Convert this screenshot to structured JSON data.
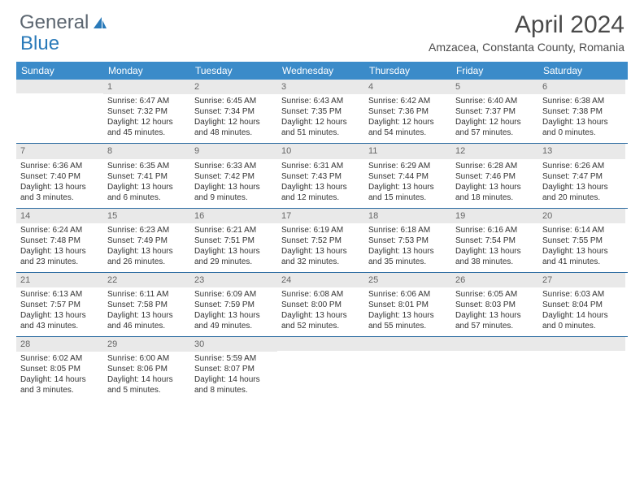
{
  "logo": {
    "text1": "General",
    "text2": "Blue"
  },
  "title": "April 2024",
  "location": "Amzacea, Constanta County, Romania",
  "colors": {
    "header_bg": "#3b8bc9",
    "header_text": "#ffffff",
    "daynum_bg": "#e9e9e9",
    "daynum_text": "#666666",
    "body_text": "#333333",
    "week_border": "#2a6aa0",
    "title_text": "#4a4a4a",
    "logo_gray": "#5c6670",
    "logo_blue": "#2a7ab9"
  },
  "day_labels": [
    "Sunday",
    "Monday",
    "Tuesday",
    "Wednesday",
    "Thursday",
    "Friday",
    "Saturday"
  ],
  "weeks": [
    [
      {
        "n": "",
        "sr": "",
        "ss": "",
        "dl": ""
      },
      {
        "n": "1",
        "sr": "Sunrise: 6:47 AM",
        "ss": "Sunset: 7:32 PM",
        "dl": "Daylight: 12 hours and 45 minutes."
      },
      {
        "n": "2",
        "sr": "Sunrise: 6:45 AM",
        "ss": "Sunset: 7:34 PM",
        "dl": "Daylight: 12 hours and 48 minutes."
      },
      {
        "n": "3",
        "sr": "Sunrise: 6:43 AM",
        "ss": "Sunset: 7:35 PM",
        "dl": "Daylight: 12 hours and 51 minutes."
      },
      {
        "n": "4",
        "sr": "Sunrise: 6:42 AM",
        "ss": "Sunset: 7:36 PM",
        "dl": "Daylight: 12 hours and 54 minutes."
      },
      {
        "n": "5",
        "sr": "Sunrise: 6:40 AM",
        "ss": "Sunset: 7:37 PM",
        "dl": "Daylight: 12 hours and 57 minutes."
      },
      {
        "n": "6",
        "sr": "Sunrise: 6:38 AM",
        "ss": "Sunset: 7:38 PM",
        "dl": "Daylight: 13 hours and 0 minutes."
      }
    ],
    [
      {
        "n": "7",
        "sr": "Sunrise: 6:36 AM",
        "ss": "Sunset: 7:40 PM",
        "dl": "Daylight: 13 hours and 3 minutes."
      },
      {
        "n": "8",
        "sr": "Sunrise: 6:35 AM",
        "ss": "Sunset: 7:41 PM",
        "dl": "Daylight: 13 hours and 6 minutes."
      },
      {
        "n": "9",
        "sr": "Sunrise: 6:33 AM",
        "ss": "Sunset: 7:42 PM",
        "dl": "Daylight: 13 hours and 9 minutes."
      },
      {
        "n": "10",
        "sr": "Sunrise: 6:31 AM",
        "ss": "Sunset: 7:43 PM",
        "dl": "Daylight: 13 hours and 12 minutes."
      },
      {
        "n": "11",
        "sr": "Sunrise: 6:29 AM",
        "ss": "Sunset: 7:44 PM",
        "dl": "Daylight: 13 hours and 15 minutes."
      },
      {
        "n": "12",
        "sr": "Sunrise: 6:28 AM",
        "ss": "Sunset: 7:46 PM",
        "dl": "Daylight: 13 hours and 18 minutes."
      },
      {
        "n": "13",
        "sr": "Sunrise: 6:26 AM",
        "ss": "Sunset: 7:47 PM",
        "dl": "Daylight: 13 hours and 20 minutes."
      }
    ],
    [
      {
        "n": "14",
        "sr": "Sunrise: 6:24 AM",
        "ss": "Sunset: 7:48 PM",
        "dl": "Daylight: 13 hours and 23 minutes."
      },
      {
        "n": "15",
        "sr": "Sunrise: 6:23 AM",
        "ss": "Sunset: 7:49 PM",
        "dl": "Daylight: 13 hours and 26 minutes."
      },
      {
        "n": "16",
        "sr": "Sunrise: 6:21 AM",
        "ss": "Sunset: 7:51 PM",
        "dl": "Daylight: 13 hours and 29 minutes."
      },
      {
        "n": "17",
        "sr": "Sunrise: 6:19 AM",
        "ss": "Sunset: 7:52 PM",
        "dl": "Daylight: 13 hours and 32 minutes."
      },
      {
        "n": "18",
        "sr": "Sunrise: 6:18 AM",
        "ss": "Sunset: 7:53 PM",
        "dl": "Daylight: 13 hours and 35 minutes."
      },
      {
        "n": "19",
        "sr": "Sunrise: 6:16 AM",
        "ss": "Sunset: 7:54 PM",
        "dl": "Daylight: 13 hours and 38 minutes."
      },
      {
        "n": "20",
        "sr": "Sunrise: 6:14 AM",
        "ss": "Sunset: 7:55 PM",
        "dl": "Daylight: 13 hours and 41 minutes."
      }
    ],
    [
      {
        "n": "21",
        "sr": "Sunrise: 6:13 AM",
        "ss": "Sunset: 7:57 PM",
        "dl": "Daylight: 13 hours and 43 minutes."
      },
      {
        "n": "22",
        "sr": "Sunrise: 6:11 AM",
        "ss": "Sunset: 7:58 PM",
        "dl": "Daylight: 13 hours and 46 minutes."
      },
      {
        "n": "23",
        "sr": "Sunrise: 6:09 AM",
        "ss": "Sunset: 7:59 PM",
        "dl": "Daylight: 13 hours and 49 minutes."
      },
      {
        "n": "24",
        "sr": "Sunrise: 6:08 AM",
        "ss": "Sunset: 8:00 PM",
        "dl": "Daylight: 13 hours and 52 minutes."
      },
      {
        "n": "25",
        "sr": "Sunrise: 6:06 AM",
        "ss": "Sunset: 8:01 PM",
        "dl": "Daylight: 13 hours and 55 minutes."
      },
      {
        "n": "26",
        "sr": "Sunrise: 6:05 AM",
        "ss": "Sunset: 8:03 PM",
        "dl": "Daylight: 13 hours and 57 minutes."
      },
      {
        "n": "27",
        "sr": "Sunrise: 6:03 AM",
        "ss": "Sunset: 8:04 PM",
        "dl": "Daylight: 14 hours and 0 minutes."
      }
    ],
    [
      {
        "n": "28",
        "sr": "Sunrise: 6:02 AM",
        "ss": "Sunset: 8:05 PM",
        "dl": "Daylight: 14 hours and 3 minutes."
      },
      {
        "n": "29",
        "sr": "Sunrise: 6:00 AM",
        "ss": "Sunset: 8:06 PM",
        "dl": "Daylight: 14 hours and 5 minutes."
      },
      {
        "n": "30",
        "sr": "Sunrise: 5:59 AM",
        "ss": "Sunset: 8:07 PM",
        "dl": "Daylight: 14 hours and 8 minutes."
      },
      {
        "n": "",
        "sr": "",
        "ss": "",
        "dl": ""
      },
      {
        "n": "",
        "sr": "",
        "ss": "",
        "dl": ""
      },
      {
        "n": "",
        "sr": "",
        "ss": "",
        "dl": ""
      },
      {
        "n": "",
        "sr": "",
        "ss": "",
        "dl": ""
      }
    ]
  ]
}
